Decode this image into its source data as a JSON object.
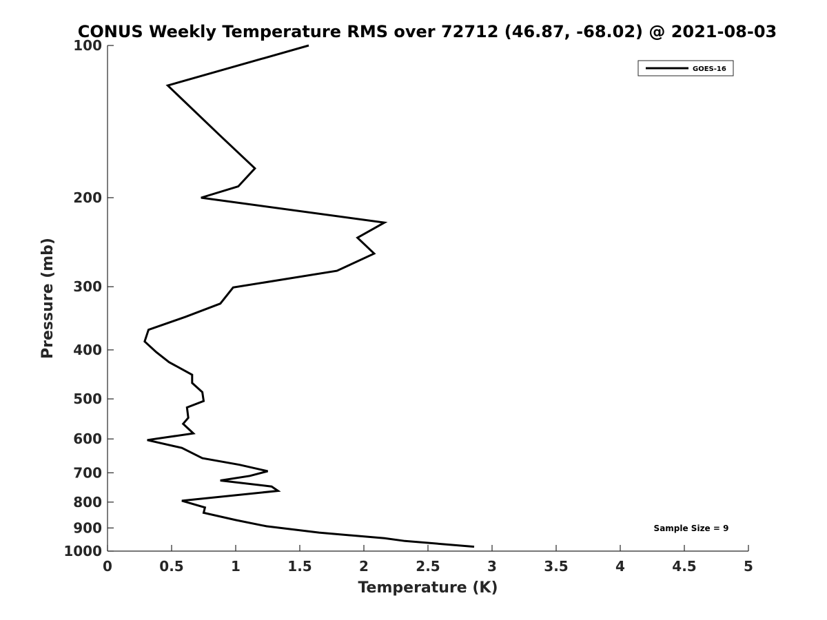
{
  "chart_data": {
    "type": "line",
    "title": "CONUS Weekly Temperature RMS over 72712 (46.87, -68.02) @ 2021-08-03",
    "xlabel": "Temperature (K)",
    "ylabel": "Pressure (mb)",
    "xlim": [
      0,
      5
    ],
    "ylim": [
      1000,
      100
    ],
    "yscale": "log",
    "y_reversed": true,
    "grid": false,
    "legend_position": "top-right",
    "xticks": [
      "0",
      "0.5",
      "1",
      "1.5",
      "2",
      "2.5",
      "3",
      "3.5",
      "4",
      "4.5",
      "5"
    ],
    "yticks": [
      "100",
      "200",
      "300",
      "400",
      "500",
      "600",
      "700",
      "800",
      "900",
      "1000"
    ],
    "annotation": "Sample Size = 9",
    "series": [
      {
        "name": "GOES-16",
        "color": "#000000",
        "points": [
          [
            1.57,
            100
          ],
          [
            0.47,
            120
          ],
          [
            0.87,
            150
          ],
          [
            1.15,
            175
          ],
          [
            1.02,
            190
          ],
          [
            0.73,
            200
          ],
          [
            2.16,
            224
          ],
          [
            1.95,
            240
          ],
          [
            2.08,
            258
          ],
          [
            1.79,
            279
          ],
          [
            0.98,
            301
          ],
          [
            0.88,
            324
          ],
          [
            0.61,
            344
          ],
          [
            0.32,
            365
          ],
          [
            0.29,
            385
          ],
          [
            0.38,
            404
          ],
          [
            0.48,
            423
          ],
          [
            0.66,
            448
          ],
          [
            0.66,
            465
          ],
          [
            0.74,
            485
          ],
          [
            0.75,
            505
          ],
          [
            0.62,
            520
          ],
          [
            0.63,
            545
          ],
          [
            0.59,
            560
          ],
          [
            0.67,
            585
          ],
          [
            0.31,
            603
          ],
          [
            0.58,
            625
          ],
          [
            0.74,
            655
          ],
          [
            1.03,
            675
          ],
          [
            1.25,
            695
          ],
          [
            1.11,
            710
          ],
          [
            0.88,
            725
          ],
          [
            1.28,
            745
          ],
          [
            1.33,
            760
          ],
          [
            0.58,
            795
          ],
          [
            0.76,
            820
          ],
          [
            0.75,
            840
          ],
          [
            1.0,
            868
          ],
          [
            1.24,
            893
          ],
          [
            1.65,
            919
          ],
          [
            2.16,
            943
          ],
          [
            2.32,
            955
          ],
          [
            2.86,
            980
          ]
        ]
      }
    ]
  }
}
